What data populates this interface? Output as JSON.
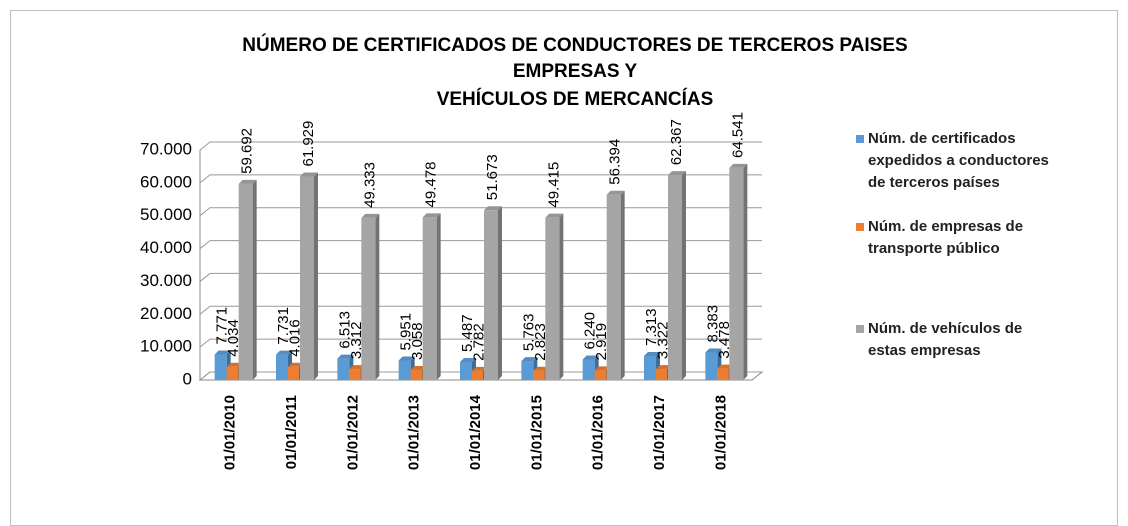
{
  "chart_data": {
    "type": "bar3d",
    "title": [
      "NÚMERO DE CERTIFICADOS DE CONDUCTORES DE TERCEROS PAISES",
      "EMPRESAS Y",
      "VEHÍCULOS DE MERCANCÍAS"
    ],
    "categories": [
      "01/01/2010",
      "01/01/2011",
      "01/01/2012",
      "01/01/2013",
      "01/01/2014",
      "01/01/2015",
      "01/01/2016",
      "01/01/2017",
      "01/01/2018"
    ],
    "series": [
      {
        "name": "Núm. de certificados expedidos a conductores de terceros países",
        "color": "#5b9bd5",
        "values": [
          7771,
          7731,
          6513,
          5951,
          5487,
          5763,
          6240,
          7313,
          8383
        ],
        "value_labels": [
          "7.771",
          "7.731",
          "6.513",
          "5.951",
          "5.487",
          "5.763",
          "6.240",
          "7.313",
          "8.383"
        ]
      },
      {
        "name": "Núm. de empresas de transporte público",
        "color": "#ed7d31",
        "values": [
          4034,
          4016,
          3312,
          3058,
          2782,
          2823,
          2919,
          3322,
          3478
        ],
        "value_labels": [
          "4.034",
          "4.016",
          "3.312",
          "3.058",
          "2.782",
          "2.823",
          "2.919",
          "3.322",
          "3.478"
        ]
      },
      {
        "name": "Núm. de vehículos de estas empresas",
        "color": "#a5a5a5",
        "values": [
          59692,
          61929,
          49333,
          49478,
          51673,
          49415,
          56394,
          62367,
          64541
        ],
        "value_labels": [
          "59.692",
          "61.929",
          "49.333",
          "49.478",
          "51.673",
          "49.415",
          "56.394",
          "62.367",
          "64.541"
        ]
      }
    ],
    "ylim": [
      0,
      70000
    ],
    "yticks": [
      0,
      {
        "value": 10000,
        "label": "10.000"
      },
      {
        "value": 20000,
        "label": "20.000"
      },
      {
        "value": 30000,
        "label": "30.000"
      },
      {
        "value": 40000,
        "label": "40.000"
      },
      {
        "value": 50000,
        "label": "50.000"
      },
      {
        "value": 60000,
        "label": "60.000"
      },
      {
        "value": 70000,
        "label": "70.000"
      }
    ],
    "grid": true,
    "legend": "right"
  }
}
